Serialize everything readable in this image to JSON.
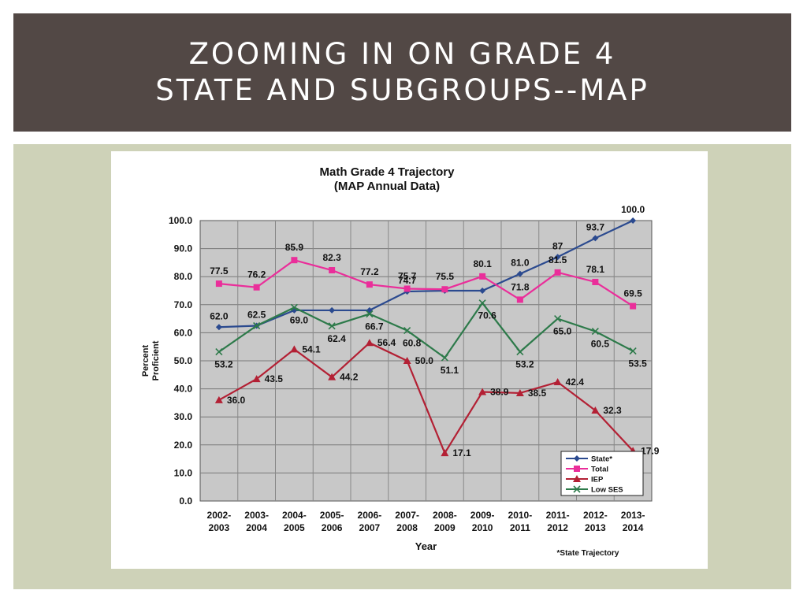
{
  "slide": {
    "title_line1": "ZOOMING IN ON GRADE 4",
    "title_line2": "STATE AND SUBGROUPS--MAP"
  },
  "colors": {
    "title_bar": "#524845",
    "background": "#ced2b8",
    "plot_area": "#c8c8c8"
  },
  "chart_data": {
    "type": "line",
    "title": "Math Grade 4 Trajectory",
    "subtitle": "(MAP Annual Data)",
    "xlabel": "Year",
    "ylabel": "Percent Proficient",
    "ylim": [
      0,
      100
    ],
    "yticks": [
      "0.0",
      "10.0",
      "20.0",
      "30.0",
      "40.0",
      "50.0",
      "60.0",
      "70.0",
      "80.0",
      "90.0",
      "100.0"
    ],
    "categories": [
      "2002-2003",
      "2003-2004",
      "2004-2005",
      "2005-2006",
      "2006-2007",
      "2007-2008",
      "2008-2009",
      "2009-2010",
      "2010-2011",
      "2011-2012",
      "2012-2013",
      "2013-2014"
    ],
    "grid": true,
    "legend_position": "bottom-right",
    "footnote": "*State Trajectory",
    "series": [
      {
        "name": "State*",
        "color": "#2b4a8f",
        "marker": "diamond",
        "values": [
          62.0,
          62.5,
          68.0,
          68.0,
          68.0,
          74.7,
          75.0,
          75.0,
          81.0,
          87.0,
          93.7,
          100.0
        ],
        "labels": [
          "62.0",
          "62.5",
          null,
          null,
          null,
          "74.7",
          null,
          null,
          "81.0",
          "87",
          "93.7",
          "100.0"
        ]
      },
      {
        "name": "Total",
        "color": "#ea2e9a",
        "marker": "square",
        "values": [
          77.5,
          76.2,
          85.9,
          82.3,
          77.2,
          75.7,
          75.5,
          80.1,
          71.8,
          81.5,
          78.1,
          69.5
        ],
        "labels": [
          "77.5",
          "76.2",
          "85.9",
          "82.3",
          "77.2",
          "75.7",
          "75.5",
          "80.1",
          "71.8",
          "81.5",
          "78.1",
          "69.5"
        ]
      },
      {
        "name": "IEP",
        "color": "#b32034",
        "marker": "triangle",
        "values": [
          36.0,
          43.5,
          54.1,
          44.2,
          56.4,
          50.0,
          17.1,
          38.9,
          38.5,
          42.4,
          32.3,
          17.9
        ],
        "labels": [
          "36.0",
          "43.5",
          "54.1",
          "44.2",
          "56.4",
          "50.0",
          "17.1",
          "38.9",
          "38.5",
          "42.4",
          "32.3",
          "17.9"
        ]
      },
      {
        "name": "Low SES",
        "color": "#2d7a4a",
        "marker": "x",
        "values": [
          53.2,
          62.5,
          69.0,
          62.4,
          66.7,
          60.8,
          51.1,
          70.6,
          53.2,
          65.0,
          60.5,
          53.5
        ],
        "labels": [
          "53.2",
          null,
          "69.0",
          "62.4",
          "66.7",
          "60.8",
          "51.1",
          "70.6",
          "53.2",
          "65.0",
          "60.5",
          "53.5"
        ]
      }
    ]
  }
}
